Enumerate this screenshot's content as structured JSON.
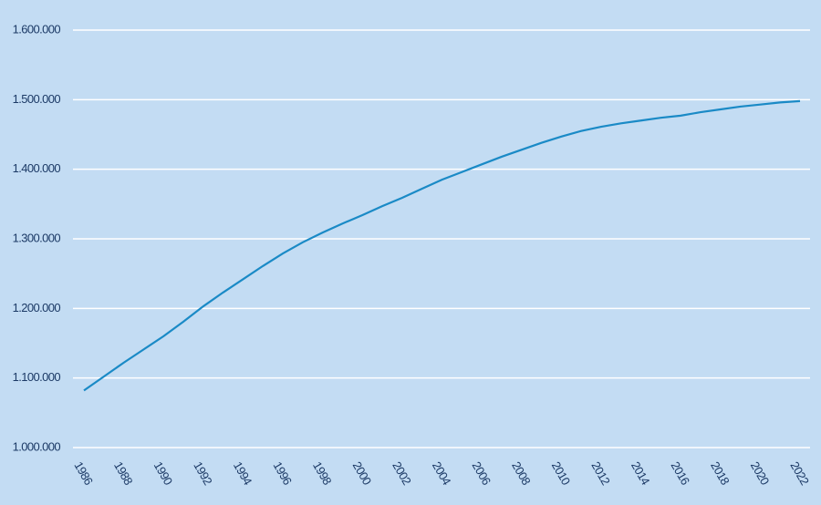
{
  "chart_data": {
    "type": "line",
    "x": [
      1986,
      1987,
      1988,
      1989,
      1990,
      1991,
      1992,
      1993,
      1994,
      1995,
      1996,
      1997,
      1998,
      1999,
      2000,
      2001,
      2002,
      2003,
      2004,
      2005,
      2006,
      2007,
      2008,
      2009,
      2010,
      2011,
      2012,
      2013,
      2014,
      2015,
      2016,
      2017,
      2018,
      2019,
      2020,
      2021,
      2022
    ],
    "series": [
      {
        "color": "#1a8ac6",
        "values": [
          1082000,
          1102000,
          1122000,
          1141000,
          1160000,
          1181000,
          1203000,
          1223000,
          1242000,
          1261000,
          1279000,
          1295000,
          1309000,
          1322000,
          1334000,
          1347000,
          1359000,
          1372000,
          1385000,
          1396000,
          1407000,
          1418000,
          1428000,
          1438000,
          1447000,
          1455000,
          1461000,
          1466000,
          1470000,
          1474000,
          1477000,
          1482000,
          1486000,
          1490000,
          1493000,
          1496000,
          1498000
        ]
      }
    ],
    "xlim": [
      1986,
      2022
    ],
    "xticks": [
      1986,
      1988,
      1990,
      1992,
      1994,
      1996,
      1998,
      2000,
      2002,
      2004,
      2006,
      2008,
      2010,
      2012,
      2014,
      2016,
      2018,
      2020,
      2022
    ],
    "ylim": [
      1000000,
      1600000
    ],
    "yticks": [
      {
        "value": 1000000,
        "label": "1.000.000"
      },
      {
        "value": 1100000,
        "label": "1.100.000"
      },
      {
        "value": 1200000,
        "label": "1.200.000"
      },
      {
        "value": 1300000,
        "label": "1.300.000"
      },
      {
        "value": 1400000,
        "label": "1.400.000"
      },
      {
        "value": 1500000,
        "label": "1.500.000"
      },
      {
        "value": 1600000,
        "label": "1.600.000"
      }
    ],
    "grid": true
  }
}
